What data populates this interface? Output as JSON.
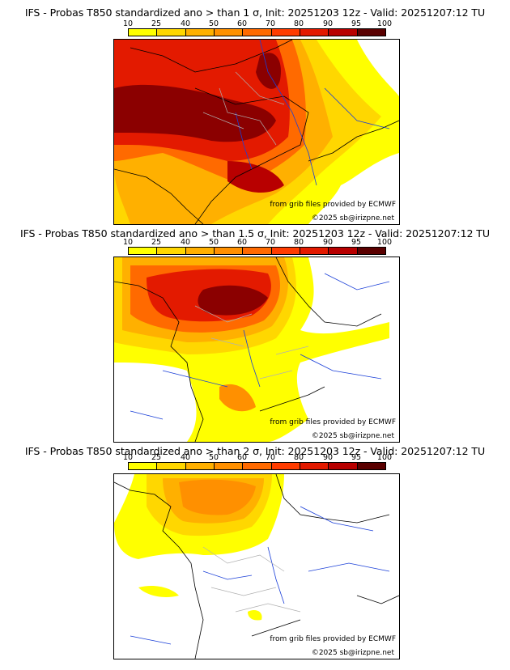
{
  "legend": {
    "labels": [
      "10",
      "25",
      "40",
      "50",
      "60",
      "70",
      "80",
      "90",
      "95",
      "100"
    ],
    "colors": [
      "#ffff00",
      "#ffd700",
      "#ffb000",
      "#ff9000",
      "#ff6a00",
      "#ff3c00",
      "#e31a00",
      "#b80000",
      "#8b0000",
      "#5a0000"
    ]
  },
  "panels": [
    {
      "title": "IFS - Probas T850  standardized ano > than 1 σ, Init: 20251203 12z - Valid: 20251207:12 TU",
      "credit_source": "from grib files provided by ECMWF",
      "credit_copyright": "©2025 sb@irizpne.net"
    },
    {
      "title": "IFS - Probas T850  standardized ano > than 1.5 σ, Init: 20251203 12z - Valid: 20251207:12 TU",
      "credit_source": "from grib files provided by ECMWF",
      "credit_copyright": "©2025 sb@irizpne.net"
    },
    {
      "title": "IFS - Probas T850  standardized ano > than 2 σ, Init: 20251203 12z - Valid: 20251207:12 TU",
      "credit_source": "from grib files provided by ECMWF",
      "credit_copyright": "©2025 sb@irizpne.net"
    }
  ]
}
